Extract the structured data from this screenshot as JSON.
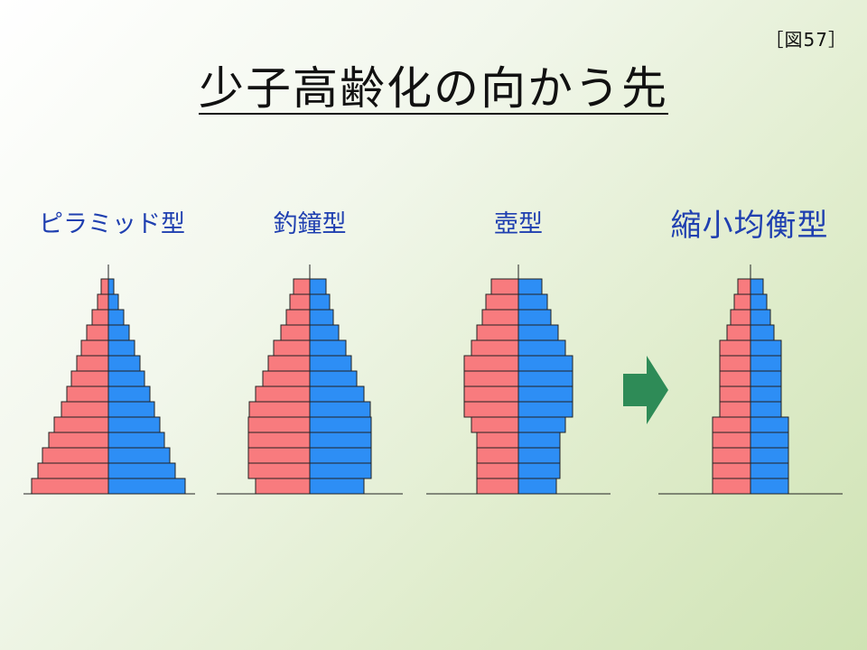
{
  "figure_number": "［図57］",
  "title": "少子高齢化の向かう先",
  "colors": {
    "male": "#f87b7e",
    "female": "#2d8ef5",
    "arrow": "#2e8b57",
    "title_labels": "#1f3fb0"
  },
  "pyramids": [
    {
      "label": "ピラミッド型",
      "left_widths": [
        8,
        12,
        18,
        24,
        30,
        35,
        41,
        46,
        52,
        60,
        66,
        73,
        78,
        85
      ],
      "right_widths": [
        6,
        11,
        17,
        23,
        29,
        35,
        40,
        46,
        51,
        57,
        62,
        68,
        74,
        85
      ]
    },
    {
      "label": "釣鐘型",
      "left_widths": [
        18,
        22,
        26,
        32,
        40,
        46,
        52,
        60,
        67,
        68,
        68,
        68,
        68,
        60
      ],
      "right_widths": [
        18,
        22,
        26,
        32,
        40,
        46,
        52,
        60,
        67,
        68,
        68,
        68,
        68,
        60
      ]
    },
    {
      "label": "壺型",
      "left_widths": [
        30,
        36,
        40,
        46,
        52,
        60,
        60,
        60,
        60,
        52,
        46,
        46,
        46,
        46
      ],
      "right_widths": [
        26,
        32,
        36,
        44,
        52,
        60,
        60,
        60,
        60,
        52,
        46,
        46,
        46,
        42
      ]
    },
    {
      "label": "縮小均衡型",
      "left_widths": [
        14,
        18,
        22,
        26,
        34,
        34,
        34,
        34,
        34,
        42,
        42,
        42,
        42,
        42
      ],
      "right_widths": [
        14,
        18,
        22,
        26,
        34,
        34,
        34,
        34,
        34,
        42,
        42,
        42,
        42,
        42
      ]
    }
  ]
}
